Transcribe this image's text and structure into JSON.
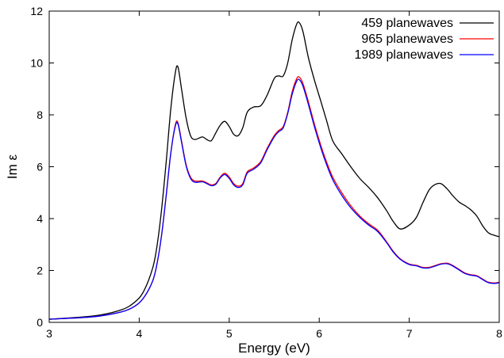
{
  "chart_data": {
    "type": "line",
    "title": "",
    "xlabel": "Energy (eV)",
    "ylabel": "Im ε",
    "xlim": [
      3,
      8
    ],
    "ylim": [
      0,
      12
    ],
    "xticks": [
      "3",
      "4",
      "5",
      "6",
      "7",
      "8"
    ],
    "yticks": [
      "0",
      "2",
      "4",
      "6",
      "8",
      "10",
      "12"
    ],
    "grid": false,
    "legend_position": "top-right",
    "series": [
      {
        "name": "459 planewaves",
        "color": "#000000",
        "x": [
          3.0,
          3.5,
          3.8,
          3.95,
          4.05,
          4.15,
          4.2,
          4.25,
          4.3,
          4.35,
          4.4,
          4.43,
          4.47,
          4.52,
          4.57,
          4.62,
          4.7,
          4.75,
          4.8,
          4.85,
          4.9,
          4.95,
          5.0,
          5.05,
          5.1,
          5.15,
          5.2,
          5.27,
          5.35,
          5.42,
          5.5,
          5.55,
          5.6,
          5.65,
          5.7,
          5.75,
          5.78,
          5.82,
          5.88,
          5.95,
          6.02,
          6.08,
          6.15,
          6.25,
          6.35,
          6.45,
          6.55,
          6.65,
          6.75,
          6.82,
          6.9,
          7.0,
          7.08,
          7.15,
          7.22,
          7.28,
          7.35,
          7.42,
          7.48,
          7.55,
          7.62,
          7.68,
          7.75,
          7.82,
          7.88,
          7.95,
          8.0
        ],
        "y": [
          0.12,
          0.25,
          0.48,
          0.78,
          1.2,
          2.1,
          3.0,
          4.4,
          6.2,
          8.2,
          9.6,
          9.85,
          9.0,
          7.9,
          7.2,
          7.05,
          7.15,
          7.05,
          7.0,
          7.3,
          7.6,
          7.75,
          7.55,
          7.25,
          7.2,
          7.5,
          8.1,
          8.3,
          8.35,
          8.75,
          9.4,
          9.5,
          9.5,
          10.0,
          10.9,
          11.5,
          11.55,
          11.2,
          10.2,
          9.3,
          8.5,
          7.8,
          7.0,
          6.5,
          6.0,
          5.55,
          5.2,
          4.8,
          4.3,
          3.9,
          3.6,
          3.75,
          4.05,
          4.6,
          5.1,
          5.3,
          5.35,
          5.15,
          4.9,
          4.65,
          4.5,
          4.35,
          4.1,
          3.7,
          3.45,
          3.35,
          3.3
        ]
      },
      {
        "name": "965 planewaves",
        "color": "#ff0000",
        "x": [
          3.0,
          3.5,
          3.8,
          3.95,
          4.05,
          4.15,
          4.2,
          4.25,
          4.3,
          4.35,
          4.4,
          4.43,
          4.47,
          4.52,
          4.57,
          4.62,
          4.7,
          4.75,
          4.8,
          4.85,
          4.9,
          4.95,
          5.0,
          5.05,
          5.1,
          5.15,
          5.2,
          5.27,
          5.35,
          5.42,
          5.5,
          5.55,
          5.6,
          5.65,
          5.7,
          5.75,
          5.78,
          5.82,
          5.88,
          5.95,
          6.02,
          6.08,
          6.15,
          6.25,
          6.35,
          6.45,
          6.55,
          6.65,
          6.75,
          6.82,
          6.9,
          7.0,
          7.08,
          7.15,
          7.22,
          7.28,
          7.35,
          7.42,
          7.48,
          7.55,
          7.62,
          7.68,
          7.75,
          7.82,
          7.88,
          7.95,
          8.0
        ],
        "y": [
          0.12,
          0.22,
          0.4,
          0.62,
          0.95,
          1.6,
          2.3,
          3.4,
          4.9,
          6.5,
          7.6,
          7.7,
          7.0,
          6.1,
          5.6,
          5.45,
          5.45,
          5.38,
          5.3,
          5.35,
          5.6,
          5.75,
          5.6,
          5.35,
          5.25,
          5.35,
          5.8,
          5.95,
          6.2,
          6.7,
          7.2,
          7.4,
          7.55,
          8.1,
          8.9,
          9.4,
          9.45,
          9.2,
          8.5,
          7.6,
          6.8,
          6.2,
          5.6,
          5.0,
          4.5,
          4.1,
          3.8,
          3.55,
          3.1,
          2.75,
          2.45,
          2.25,
          2.2,
          2.12,
          2.12,
          2.18,
          2.26,
          2.28,
          2.2,
          2.05,
          1.9,
          1.84,
          1.8,
          1.66,
          1.55,
          1.52,
          1.55
        ]
      },
      {
        "name": "1989 planewaves",
        "color": "#0000ff",
        "x": [
          3.0,
          3.5,
          3.8,
          3.95,
          4.05,
          4.15,
          4.2,
          4.25,
          4.3,
          4.35,
          4.4,
          4.43,
          4.47,
          4.52,
          4.57,
          4.62,
          4.7,
          4.75,
          4.8,
          4.85,
          4.9,
          4.95,
          5.0,
          5.05,
          5.1,
          5.15,
          5.2,
          5.27,
          5.35,
          5.42,
          5.5,
          5.55,
          5.6,
          5.65,
          5.7,
          5.75,
          5.78,
          5.82,
          5.88,
          5.95,
          6.02,
          6.08,
          6.15,
          6.25,
          6.35,
          6.45,
          6.55,
          6.65,
          6.75,
          6.82,
          6.9,
          7.0,
          7.08,
          7.15,
          7.22,
          7.28,
          7.35,
          7.42,
          7.48,
          7.55,
          7.62,
          7.68,
          7.75,
          7.82,
          7.88,
          7.95,
          8.0
        ],
        "y": [
          0.12,
          0.22,
          0.4,
          0.62,
          0.95,
          1.6,
          2.3,
          3.4,
          4.9,
          6.5,
          7.55,
          7.65,
          6.95,
          6.05,
          5.55,
          5.4,
          5.42,
          5.35,
          5.27,
          5.32,
          5.57,
          5.7,
          5.55,
          5.3,
          5.2,
          5.3,
          5.75,
          5.9,
          6.15,
          6.65,
          7.15,
          7.35,
          7.5,
          8.05,
          8.8,
          9.3,
          9.35,
          9.1,
          8.4,
          7.5,
          6.7,
          6.1,
          5.5,
          4.9,
          4.42,
          4.05,
          3.75,
          3.5,
          3.07,
          2.72,
          2.43,
          2.23,
          2.18,
          2.1,
          2.1,
          2.16,
          2.24,
          2.26,
          2.18,
          2.03,
          1.88,
          1.82,
          1.78,
          1.64,
          1.53,
          1.5,
          1.53
        ]
      }
    ]
  }
}
